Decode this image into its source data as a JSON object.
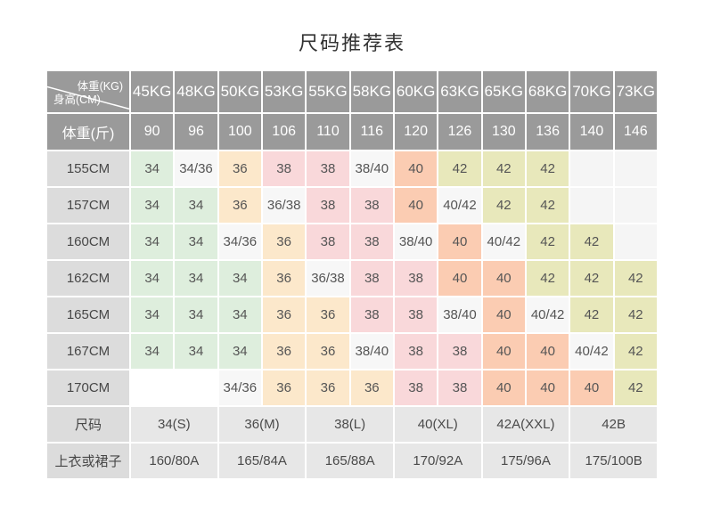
{
  "title": "尺码推荐表",
  "colors": {
    "title_text": "#333333",
    "header_bg": "#9a9a9a",
    "header_text": "#ffffff",
    "label_bg": "#dcdcdc",
    "footer_cell_bg": "#e7e7e7",
    "cell_text": "#555555",
    "fills": {
      "green": "#deeedd",
      "peach": "#fce8cb",
      "pink": "#f9d8da",
      "salmon": "#fbccb2",
      "khaki": "#e8e8bb",
      "neutral": "#f7f7f7",
      "empty": "#f5f5f5",
      "blank": "#ffffff"
    }
  },
  "table": {
    "corner": {
      "top": "体重(KG)",
      "bottom": "身高(CM)"
    },
    "weight_kg": [
      "45KG",
      "48KG",
      "50KG",
      "53KG",
      "55KG",
      "58KG",
      "60KG",
      "63KG",
      "65KG",
      "68KG",
      "70KG",
      "73KG"
    ],
    "weight_jin_label": "体重(斤)",
    "weight_jin": [
      "90",
      "96",
      "100",
      "106",
      "110",
      "116",
      "120",
      "126",
      "130",
      "136",
      "140",
      "146"
    ],
    "rows": [
      {
        "height": "155CM",
        "cells": [
          {
            "v": "34",
            "fill": "green"
          },
          {
            "v": "34/36",
            "fill": "neutral"
          },
          {
            "v": "36",
            "fill": "peach"
          },
          {
            "v": "38",
            "fill": "pink"
          },
          {
            "v": "38",
            "fill": "pink"
          },
          {
            "v": "38/40",
            "fill": "neutral"
          },
          {
            "v": "40",
            "fill": "salmon"
          },
          {
            "v": "42",
            "fill": "khaki"
          },
          {
            "v": "42",
            "fill": "khaki"
          },
          {
            "v": "42",
            "fill": "khaki"
          },
          {
            "v": "",
            "fill": "empty"
          },
          {
            "v": "",
            "fill": "empty"
          }
        ]
      },
      {
        "height": "157CM",
        "cells": [
          {
            "v": "34",
            "fill": "green"
          },
          {
            "v": "34",
            "fill": "green"
          },
          {
            "v": "36",
            "fill": "peach"
          },
          {
            "v": "36/38",
            "fill": "neutral"
          },
          {
            "v": "38",
            "fill": "pink"
          },
          {
            "v": "38",
            "fill": "pink"
          },
          {
            "v": "40",
            "fill": "salmon"
          },
          {
            "v": "40/42",
            "fill": "neutral"
          },
          {
            "v": "42",
            "fill": "khaki"
          },
          {
            "v": "42",
            "fill": "khaki"
          },
          {
            "v": "",
            "fill": "empty"
          },
          {
            "v": "",
            "fill": "empty"
          }
        ]
      },
      {
        "height": "160CM",
        "cells": [
          {
            "v": "34",
            "fill": "green"
          },
          {
            "v": "34",
            "fill": "green"
          },
          {
            "v": "34/36",
            "fill": "neutral"
          },
          {
            "v": "36",
            "fill": "peach"
          },
          {
            "v": "38",
            "fill": "pink"
          },
          {
            "v": "38",
            "fill": "pink"
          },
          {
            "v": "38/40",
            "fill": "neutral"
          },
          {
            "v": "40",
            "fill": "salmon"
          },
          {
            "v": "40/42",
            "fill": "neutral"
          },
          {
            "v": "42",
            "fill": "khaki"
          },
          {
            "v": "42",
            "fill": "khaki"
          },
          {
            "v": "",
            "fill": "empty"
          }
        ]
      },
      {
        "height": "162CM",
        "cells": [
          {
            "v": "34",
            "fill": "green"
          },
          {
            "v": "34",
            "fill": "green"
          },
          {
            "v": "34",
            "fill": "green"
          },
          {
            "v": "36",
            "fill": "peach"
          },
          {
            "v": "36/38",
            "fill": "neutral"
          },
          {
            "v": "38",
            "fill": "pink"
          },
          {
            "v": "38",
            "fill": "pink"
          },
          {
            "v": "40",
            "fill": "salmon"
          },
          {
            "v": "40",
            "fill": "salmon"
          },
          {
            "v": "42",
            "fill": "khaki"
          },
          {
            "v": "42",
            "fill": "khaki"
          },
          {
            "v": "42",
            "fill": "khaki"
          }
        ]
      },
      {
        "height": "165CM",
        "cells": [
          {
            "v": "34",
            "fill": "green"
          },
          {
            "v": "34",
            "fill": "green"
          },
          {
            "v": "34",
            "fill": "green"
          },
          {
            "v": "36",
            "fill": "peach"
          },
          {
            "v": "36",
            "fill": "peach"
          },
          {
            "v": "38",
            "fill": "pink"
          },
          {
            "v": "38",
            "fill": "pink"
          },
          {
            "v": "38/40",
            "fill": "neutral"
          },
          {
            "v": "40",
            "fill": "salmon"
          },
          {
            "v": "40/42",
            "fill": "neutral"
          },
          {
            "v": "42",
            "fill": "khaki"
          },
          {
            "v": "42",
            "fill": "khaki"
          }
        ]
      },
      {
        "height": "167CM",
        "cells": [
          {
            "v": "34",
            "fill": "green"
          },
          {
            "v": "34",
            "fill": "green"
          },
          {
            "v": "34",
            "fill": "green"
          },
          {
            "v": "36",
            "fill": "peach"
          },
          {
            "v": "36",
            "fill": "peach"
          },
          {
            "v": "38/40",
            "fill": "neutral"
          },
          {
            "v": "38",
            "fill": "pink"
          },
          {
            "v": "38",
            "fill": "pink"
          },
          {
            "v": "40",
            "fill": "salmon"
          },
          {
            "v": "40",
            "fill": "salmon"
          },
          {
            "v": "40/42",
            "fill": "neutral"
          },
          {
            "v": "42",
            "fill": "khaki"
          }
        ]
      },
      {
        "height": "170CM",
        "cells": [
          {
            "v": "",
            "fill": "blank"
          },
          {
            "v": "",
            "fill": "blank"
          },
          {
            "v": "34/36",
            "fill": "neutral"
          },
          {
            "v": "36",
            "fill": "peach"
          },
          {
            "v": "36",
            "fill": "peach"
          },
          {
            "v": "36",
            "fill": "peach"
          },
          {
            "v": "38",
            "fill": "pink"
          },
          {
            "v": "38",
            "fill": "pink"
          },
          {
            "v": "40",
            "fill": "salmon"
          },
          {
            "v": "40",
            "fill": "salmon"
          },
          {
            "v": "40",
            "fill": "salmon"
          },
          {
            "v": "42",
            "fill": "khaki"
          }
        ]
      }
    ],
    "size_row": {
      "label": "尺码",
      "values": [
        "34(S)",
        "36(M)",
        "38(L)",
        "40(XL)",
        "42A(XXL)",
        "42B"
      ]
    },
    "garment_row": {
      "label": "上衣或裙子",
      "values": [
        "160/80A",
        "165/84A",
        "165/88A",
        "170/92A",
        "175/96A",
        "175/100B"
      ]
    }
  }
}
